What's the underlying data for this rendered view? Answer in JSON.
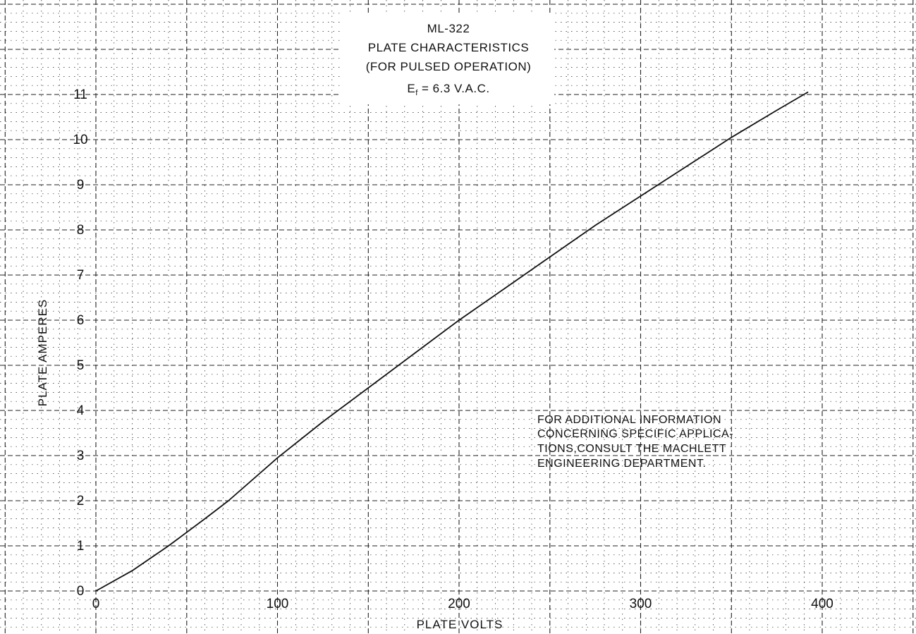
{
  "chart_data": {
    "type": "line",
    "title": "ML-322",
    "subtitle": "PLATE CHARACTERISTICS",
    "subtitle2": "(FOR PULSED OPERATION)",
    "condition": "Ef = 6.3 V.A.C.",
    "condition_parts": {
      "symbol": "E",
      "subscript": "f",
      "value": " = 6.3 V.A.C."
    },
    "xlabel": "PLATE VOLTS",
    "ylabel": "PLATE AMPERES",
    "xlim": [
      0,
      420
    ],
    "ylim": [
      0,
      11
    ],
    "x_ticks": [
      0,
      100,
      200,
      300,
      400
    ],
    "y_ticks": [
      0,
      1,
      2,
      3,
      4,
      5,
      6,
      7,
      8,
      9,
      10,
      11
    ],
    "grid": true,
    "grid_style": "dotted minor, dashed major",
    "legend": "none",
    "note": [
      "FOR ADDITIONAL INFORMATION",
      "CONCERNING SPECIFIC APPLICA-",
      "TIONS,CONSULT THE MACHLETT",
      "ENGINEERING DEPARTMENT."
    ],
    "series": [
      {
        "x": [
          0,
          20,
          40,
          60,
          73,
          100,
          125,
          150,
          175,
          200,
          225,
          250,
          275,
          300,
          325,
          350,
          375,
          392
        ],
        "y": [
          0,
          0.45,
          1.0,
          1.6,
          2.0,
          2.95,
          3.75,
          4.5,
          5.25,
          6.0,
          6.7,
          7.4,
          8.1,
          8.75,
          9.4,
          10.05,
          10.65,
          11.05
        ]
      }
    ],
    "colors": {
      "line": "#111111",
      "grid": "#222222",
      "background": "#ffffff"
    }
  }
}
